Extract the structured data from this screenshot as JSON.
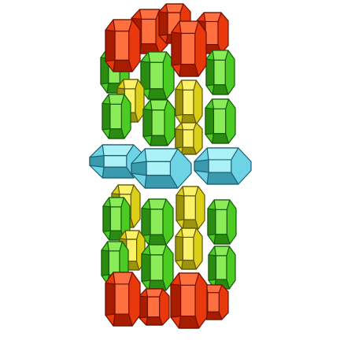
{
  "image": {
    "subject": "polyhedra-stack",
    "background_color": "#ffffff"
  },
  "palette": {
    "red": {
      "light": "#ff7040",
      "mid": "#e8380c",
      "dark": "#a81c00",
      "edge": "#6e1000"
    },
    "green": {
      "light": "#8aec58",
      "mid": "#4ccc22",
      "dark": "#2a8c10",
      "edge": "#175808"
    },
    "yellow": {
      "light": "#fbf26a",
      "mid": "#dcd016",
      "dark": "#9c940a",
      "edge": "#5c5404"
    },
    "cyan": {
      "light": "#aaf2f8",
      "mid": "#6cd4e4",
      "dark": "#3a9aae",
      "edge": "#1c5e70"
    }
  }
}
